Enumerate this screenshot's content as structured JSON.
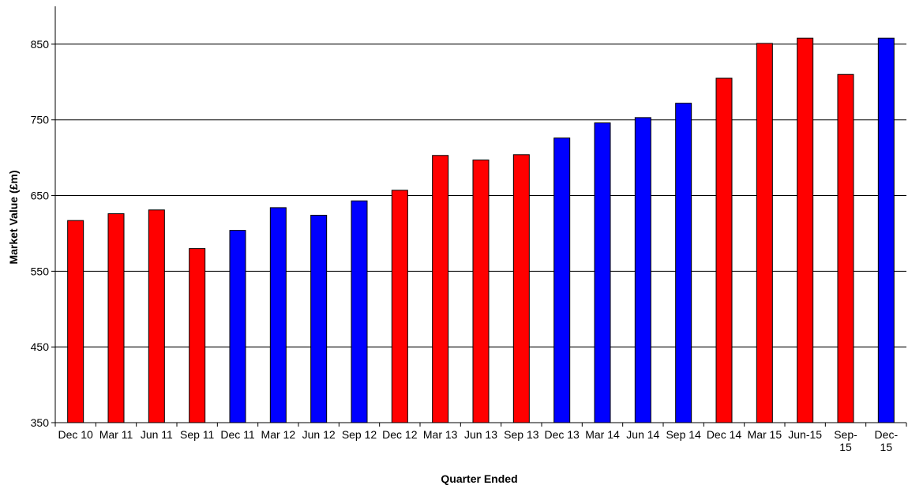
{
  "chart_data": {
    "type": "bar",
    "title": "",
    "xlabel": "Quarter Ended",
    "ylabel": "Market Value (£m)",
    "ylim": [
      350,
      900
    ],
    "yticks": [
      350,
      450,
      550,
      650,
      750,
      850
    ],
    "grid": true,
    "legend": "none",
    "categories": [
      "Dec 10",
      "Mar 11",
      "Jun 11",
      "Sep 11",
      "Dec 11",
      "Mar 12",
      "Jun 12",
      "Sep 12",
      "Dec 12",
      "Mar 13",
      "Jun 13",
      "Sep 13",
      "Dec 13",
      "Mar 14",
      "Jun 14",
      "Sep 14",
      "Dec 14",
      "Mar 15",
      "Jun-15",
      "Sep-15",
      "Dec-15"
    ],
    "values": [
      617,
      626,
      631,
      580,
      604,
      634,
      624,
      643,
      657,
      703,
      697,
      704,
      726,
      746,
      753,
      772,
      805,
      851,
      858,
      810,
      858
    ],
    "bar_colors": [
      "#ff0000",
      "#ff0000",
      "#ff0000",
      "#ff0000",
      "#0000ff",
      "#0000ff",
      "#0000ff",
      "#0000ff",
      "#ff0000",
      "#ff0000",
      "#ff0000",
      "#ff0000",
      "#0000ff",
      "#0000ff",
      "#0000ff",
      "#0000ff",
      "#ff0000",
      "#ff0000",
      "#ff0000",
      "#ff0000",
      "#0000ff"
    ]
  }
}
